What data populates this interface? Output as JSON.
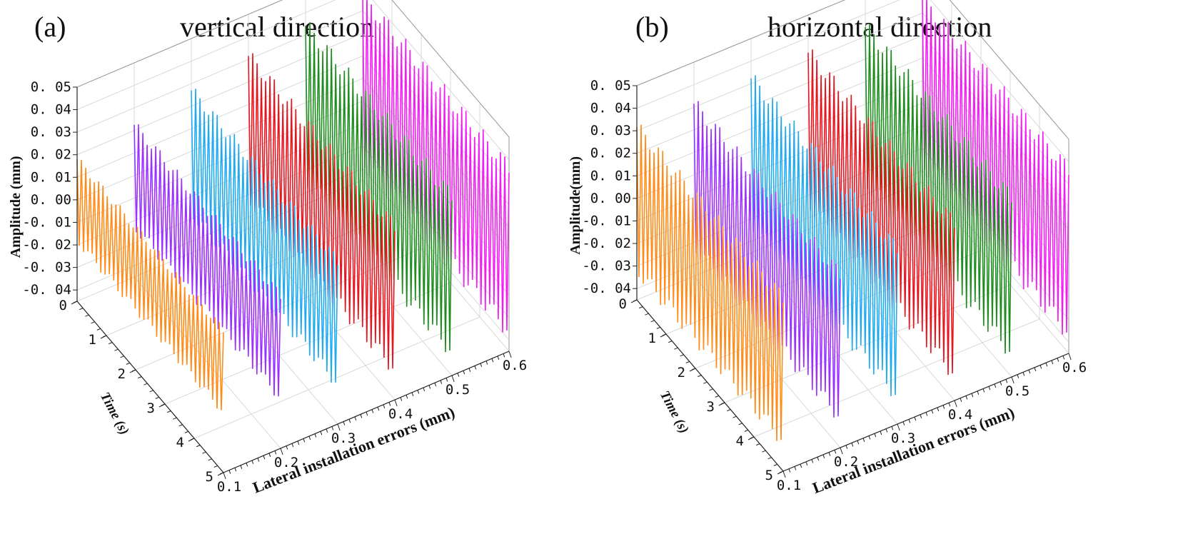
{
  "chart_data": [
    {
      "type": "waterfall-3d-line",
      "panel_label": "(a)",
      "title": "vertical direction",
      "zlabel": "Amplitude (mm)",
      "ylabel": "Time (s)",
      "xlabel": "Lateral installation errors (mm)",
      "z_ticks": [
        "0. 05",
        "0. 04",
        "0. 03",
        "0. 02",
        "0. 01",
        "0. 00",
        "-0. 01",
        "-0. 02",
        "-0. 03",
        "-0. 04"
      ],
      "time_ticks": [
        "0",
        "1",
        "2",
        "3",
        "4",
        "5"
      ],
      "x_ticks": [
        "0.1",
        "0.2",
        "0.3",
        "0.4",
        "0.5",
        "0.6"
      ],
      "zlim": [
        -0.045,
        0.05
      ],
      "time_range": [
        0,
        5
      ],
      "series": [
        {
          "name": "0.1",
          "x": 0.1,
          "color": "#ff8c1a",
          "amplitude": 0.02,
          "cycles": 34
        },
        {
          "name": "0.2",
          "x": 0.2,
          "color": "#9b30ff",
          "amplitude": 0.025,
          "cycles": 34
        },
        {
          "name": "0.3",
          "x": 0.3,
          "color": "#22aaee",
          "amplitude": 0.03,
          "cycles": 34
        },
        {
          "name": "0.4",
          "x": 0.4,
          "color": "#e8141e",
          "amplitude": 0.035,
          "cycles": 34
        },
        {
          "name": "0.5",
          "x": 0.5,
          "color": "#1e8c1e",
          "amplitude": 0.038,
          "cycles": 34
        },
        {
          "name": "0.6",
          "x": 0.6,
          "color": "#f01ef0",
          "amplitude": 0.04,
          "cycles": 34
        }
      ]
    },
    {
      "type": "waterfall-3d-line",
      "panel_label": "(b)",
      "title": "horizontal direction",
      "zlabel": "Amplitude(mm)",
      "ylabel": "Time (s)",
      "xlabel": "Lateral installation errors (mm)",
      "z_ticks": [
        "0. 05",
        "0. 04",
        "0. 03",
        "0. 02",
        "0. 01",
        "0. 00",
        "-0. 01",
        "-0. 02",
        "-0. 03",
        "-0. 04"
      ],
      "time_ticks": [
        "0",
        "1",
        "2",
        "3",
        "4",
        "5"
      ],
      "x_ticks": [
        "0.1",
        "0.2",
        "0.3",
        "0.4",
        "0.5",
        "0.6"
      ],
      "zlim": [
        -0.045,
        0.05
      ],
      "time_range": [
        0,
        5
      ],
      "series": [
        {
          "name": "0.1",
          "x": 0.1,
          "color": "#ff8c1a",
          "amplitude": 0.035,
          "cycles": 34
        },
        {
          "name": "0.2",
          "x": 0.2,
          "color": "#9b30ff",
          "amplitude": 0.035,
          "cycles": 34
        },
        {
          "name": "0.3",
          "x": 0.3,
          "color": "#22aaee",
          "amplitude": 0.036,
          "cycles": 34
        },
        {
          "name": "0.4",
          "x": 0.4,
          "color": "#e8141e",
          "amplitude": 0.037,
          "cycles": 34
        },
        {
          "name": "0.5",
          "x": 0.5,
          "color": "#1e8c1e",
          "amplitude": 0.038,
          "cycles": 34
        },
        {
          "name": "0.6",
          "x": 0.6,
          "color": "#f01ef0",
          "amplitude": 0.04,
          "cycles": 34
        }
      ]
    }
  ]
}
